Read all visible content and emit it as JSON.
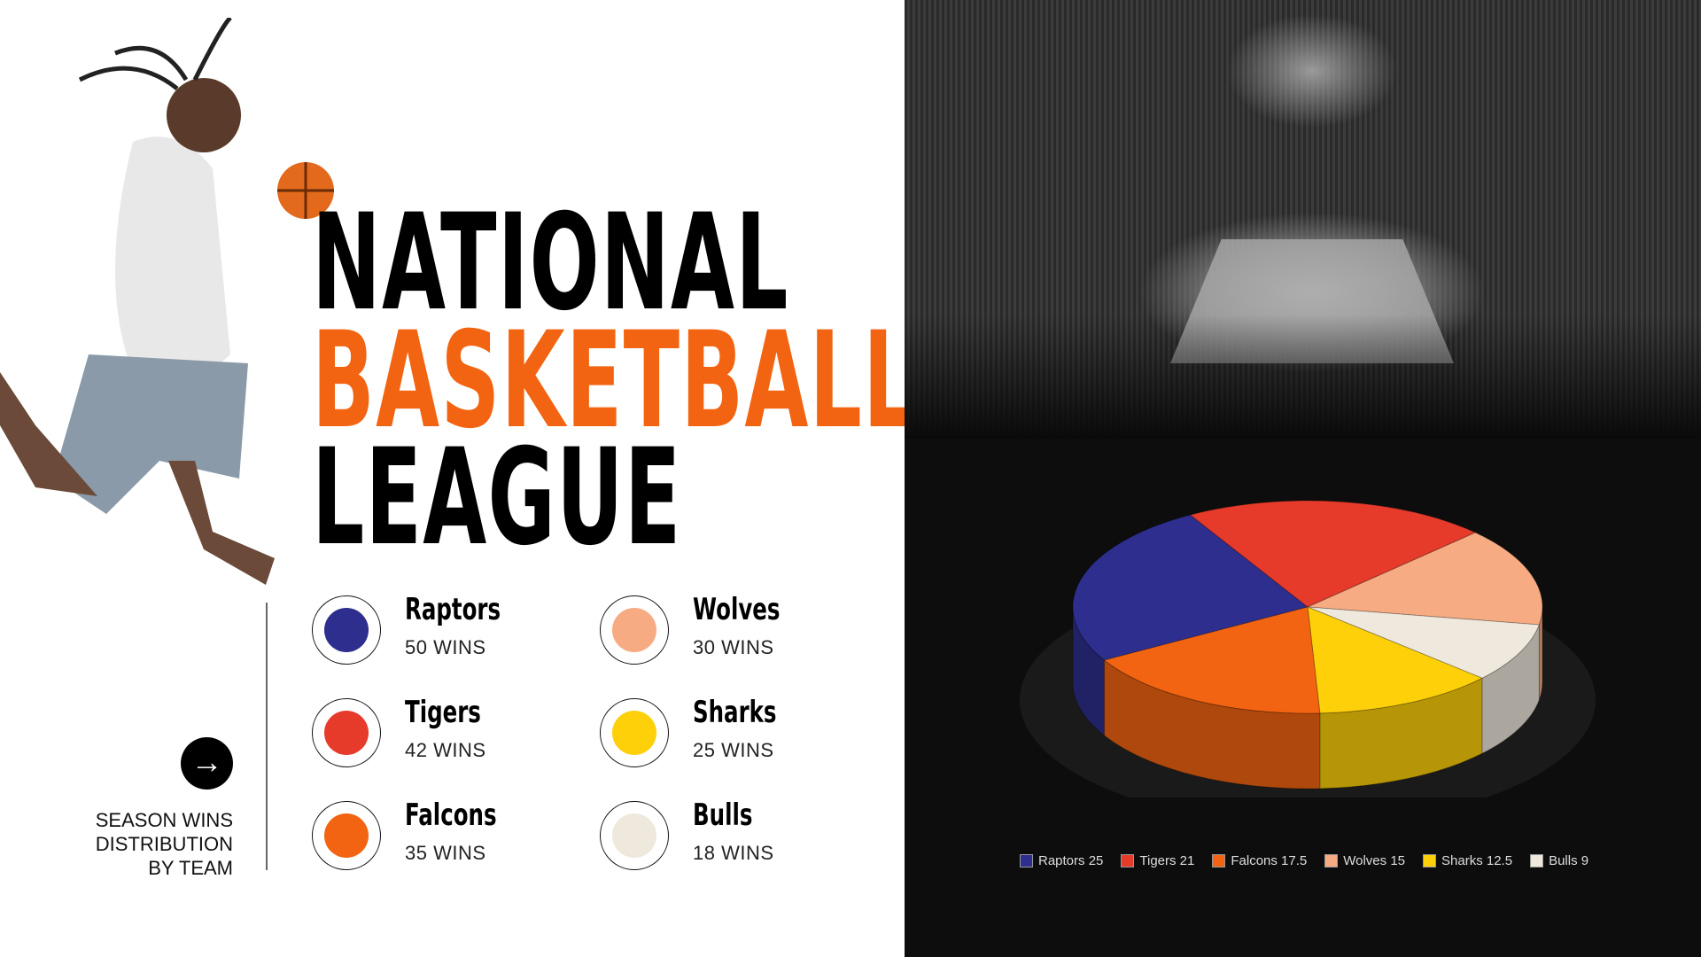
{
  "title": {
    "line1": "NATIONAL",
    "line2": "BASKETBALL",
    "line3": "LEAGUE"
  },
  "caption": {
    "line1": "SEASON WINS",
    "line2": "DISTRIBUTION",
    "line3": "BY TEAM"
  },
  "arrow_icon": "arrow-right-icon",
  "teams": [
    {
      "name": "Raptors",
      "wins": "50 WINS",
      "color": "#2e2e8f"
    },
    {
      "name": "Tigers",
      "wins": "42 WINS",
      "color": "#e63a2a"
    },
    {
      "name": "Falcons",
      "wins": "35 WINS",
      "color": "#f26411"
    },
    {
      "name": "Wolves",
      "wins": "30 WINS",
      "color": "#f7ab83"
    },
    {
      "name": "Sharks",
      "wins": "25 WINS",
      "color": "#fdd00a"
    },
    {
      "name": "Bulls",
      "wins": "18 WINS",
      "color": "#efe8dc"
    }
  ],
  "chart_data": {
    "type": "pie",
    "style": "3d",
    "legend_position": "bottom",
    "series": [
      {
        "name": "Raptors",
        "value": 25,
        "color": "#2e2e8f",
        "label": "Raptors 25"
      },
      {
        "name": "Tigers",
        "value": 21,
        "color": "#e63a2a",
        "label": "Tigers 21"
      },
      {
        "name": "Falcons",
        "value": 17.5,
        "color": "#f26411",
        "label": "Falcons 17.5"
      },
      {
        "name": "Wolves",
        "value": 15,
        "color": "#f7ab83",
        "label": "Wolves 15"
      },
      {
        "name": "Sharks",
        "value": 12.5,
        "color": "#fdd00a",
        "label": "Sharks 12.5"
      },
      {
        "name": "Bulls",
        "value": 9,
        "color": "#efe8dc",
        "label": "Bulls 9"
      }
    ]
  }
}
